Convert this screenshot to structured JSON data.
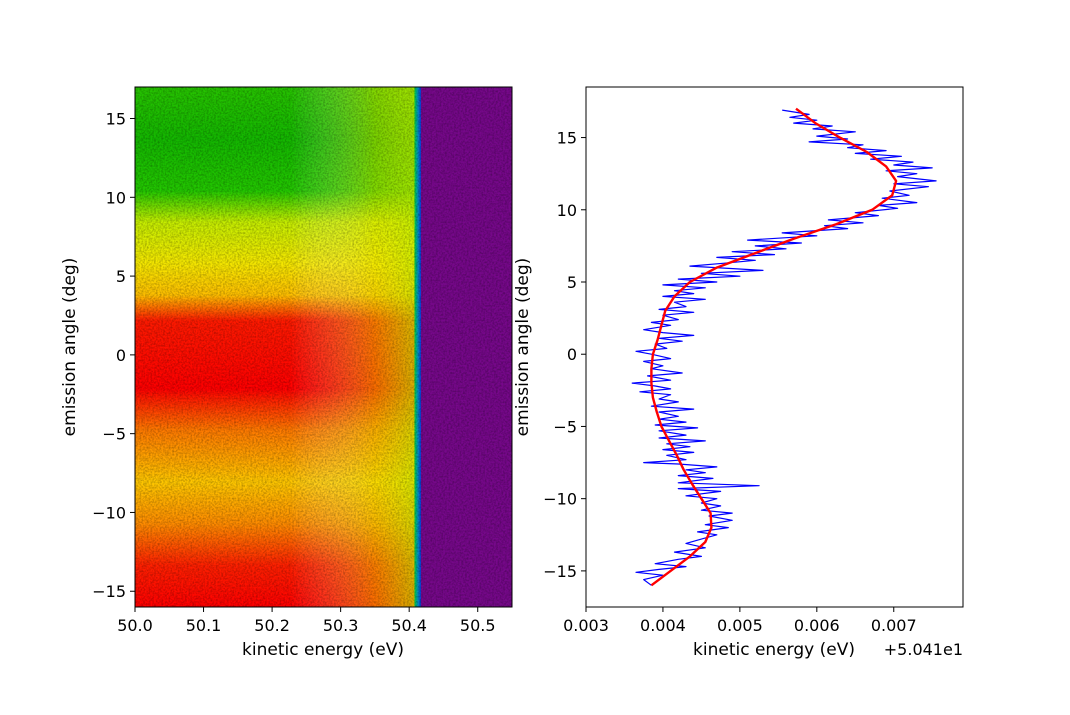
{
  "chart_data": [
    {
      "type": "heatmap",
      "title": "",
      "xlabel": "kinetic energy (eV)",
      "ylabel": "emission angle (deg)",
      "xlim": [
        50.0,
        50.55
      ],
      "ylim": [
        -16,
        17
      ],
      "x_ticks": [
        "50.0",
        "50.1",
        "50.2",
        "50.3",
        "50.4",
        "50.5"
      ],
      "y_ticks": [
        "−15",
        "−10",
        "−5",
        "0",
        "5",
        "10",
        "15"
      ],
      "colormap": "prism-like: red → yellow → green → blue → purple",
      "colors": {
        "high": "#ff0000",
        "mid": "#ffd000",
        "low": "#1bd100",
        "edge": "#1030e0",
        "background": "#7a0a8c"
      },
      "fermi_edge_energy": 50.415,
      "description_values": {
        "angle_bands": [
          {
            "from": 17,
            "to": 10,
            "dominant": "green"
          },
          {
            "from": 10,
            "to": 4,
            "dominant": "yellow"
          },
          {
            "from": 4,
            "to": -5,
            "dominant": "red"
          },
          {
            "from": -5,
            "to": -12,
            "dominant": "yellow-orange"
          },
          {
            "from": -12,
            "to": -16,
            "dominant": "red"
          }
        ]
      }
    },
    {
      "type": "line",
      "title": "",
      "xlabel": "kinetic energy (eV)",
      "x_offset_label": "+5.041e1",
      "ylabel": "emission angle (deg)",
      "xlim": [
        0.003,
        0.0079
      ],
      "ylim": [
        -17.5,
        18.5
      ],
      "x_ticks": [
        "0.003",
        "0.004",
        "0.005",
        "0.006",
        "0.007"
      ],
      "y_ticks": [
        "−15",
        "−10",
        "−5",
        "0",
        "5",
        "10",
        "15"
      ],
      "series": [
        {
          "color": "#0000ff",
          "points": [
            [
              0.00385,
              -16.0
            ],
            [
              0.00375,
              -15.6
            ],
            [
              0.004,
              -15.3
            ],
            [
              0.00365,
              -15.1
            ],
            [
              0.00395,
              -14.9
            ],
            [
              0.0043,
              -14.7
            ],
            [
              0.0039,
              -14.5
            ],
            [
              0.0042,
              -14.2
            ],
            [
              0.0045,
              -14.0
            ],
            [
              0.00415,
              -13.7
            ],
            [
              0.00455,
              -13.4
            ],
            [
              0.0043,
              -13.1
            ],
            [
              0.0045,
              -12.8
            ],
            [
              0.0047,
              -12.5
            ],
            [
              0.00445,
              -12.3
            ],
            [
              0.00485,
              -12.0
            ],
            [
              0.00455,
              -11.8
            ],
            [
              0.0049,
              -11.5
            ],
            [
              0.0046,
              -11.2
            ],
            [
              0.0049,
              -11.0
            ],
            [
              0.0045,
              -10.8
            ],
            [
              0.00475,
              -10.5
            ],
            [
              0.0045,
              -10.3
            ],
            [
              0.0047,
              -10.0
            ],
            [
              0.0043,
              -9.8
            ],
            [
              0.00475,
              -9.5
            ],
            [
              0.0042,
              -9.3
            ],
            [
              0.00525,
              -9.1
            ],
            [
              0.0042,
              -8.9
            ],
            [
              0.00465,
              -8.6
            ],
            [
              0.0042,
              -8.4
            ],
            [
              0.00455,
              -8.2
            ],
            [
              0.0043,
              -8.0
            ],
            [
              0.0047,
              -7.8
            ],
            [
              0.0042,
              -7.6
            ],
            [
              0.00375,
              -7.5
            ],
            [
              0.0043,
              -7.3
            ],
            [
              0.00405,
              -7.0
            ],
            [
              0.0044,
              -6.8
            ],
            [
              0.004,
              -6.6
            ],
            [
              0.00435,
              -6.4
            ],
            [
              0.00405,
              -6.2
            ],
            [
              0.00455,
              -6.0
            ],
            [
              0.00395,
              -5.8
            ],
            [
              0.0043,
              -5.6
            ],
            [
              0.00395,
              -5.3
            ],
            [
              0.00445,
              -5.1
            ],
            [
              0.0039,
              -4.9
            ],
            [
              0.0043,
              -4.7
            ],
            [
              0.00395,
              -4.5
            ],
            [
              0.0042,
              -4.3
            ],
            [
              0.00395,
              -4.0
            ],
            [
              0.0044,
              -3.8
            ],
            [
              0.00385,
              -3.6
            ],
            [
              0.0042,
              -3.3
            ],
            [
              0.00395,
              -3.1
            ],
            [
              0.0041,
              -2.8
            ],
            [
              0.0037,
              -2.6
            ],
            [
              0.0041,
              -2.4
            ],
            [
              0.0039,
              -2.2
            ],
            [
              0.0036,
              -2.0
            ],
            [
              0.0041,
              -1.8
            ],
            [
              0.0038,
              -1.5
            ],
            [
              0.00425,
              -1.3
            ],
            [
              0.00385,
              -1.0
            ],
            [
              0.004,
              -0.8
            ],
            [
              0.00375,
              -0.5
            ],
            [
              0.0041,
              -0.3
            ],
            [
              0.00385,
              0.0
            ],
            [
              0.00365,
              0.2
            ],
            [
              0.00405,
              0.4
            ],
            [
              0.0039,
              0.7
            ],
            [
              0.00425,
              0.9
            ],
            [
              0.00395,
              1.1
            ],
            [
              0.0044,
              1.3
            ],
            [
              0.004,
              1.5
            ],
            [
              0.00375,
              1.7
            ],
            [
              0.0041,
              2.0
            ],
            [
              0.00385,
              2.2
            ],
            [
              0.0042,
              2.4
            ],
            [
              0.004,
              2.7
            ],
            [
              0.0044,
              2.9
            ],
            [
              0.00395,
              3.1
            ],
            [
              0.0043,
              3.3
            ],
            [
              0.00415,
              3.6
            ],
            [
              0.00455,
              3.8
            ],
            [
              0.004,
              4.0
            ],
            [
              0.0044,
              4.2
            ],
            [
              0.00415,
              4.4
            ],
            [
              0.00455,
              4.6
            ],
            [
              0.004,
              4.8
            ],
            [
              0.0047,
              5.0
            ],
            [
              0.0042,
              5.2
            ],
            [
              0.005,
              5.4
            ],
            [
              0.0045,
              5.6
            ],
            [
              0.0053,
              5.8
            ],
            [
              0.00435,
              6.1
            ],
            [
              0.0048,
              6.3
            ],
            [
              0.0052,
              6.5
            ],
            [
              0.0047,
              6.7
            ],
            [
              0.00545,
              6.9
            ],
            [
              0.0049,
              7.1
            ],
            [
              0.0056,
              7.3
            ],
            [
              0.0052,
              7.5
            ],
            [
              0.0058,
              7.7
            ],
            [
              0.0051,
              7.9
            ],
            [
              0.006,
              8.2
            ],
            [
              0.00555,
              8.4
            ],
            [
              0.0064,
              8.7
            ],
            [
              0.0061,
              8.9
            ],
            [
              0.0066,
              9.1
            ],
            [
              0.00615,
              9.3
            ],
            [
              0.0068,
              9.6
            ],
            [
              0.0065,
              9.8
            ],
            [
              0.00705,
              10.1
            ],
            [
              0.0068,
              10.3
            ],
            [
              0.0073,
              10.5
            ],
            [
              0.00685,
              10.8
            ],
            [
              0.0072,
              11.0
            ],
            [
              0.00695,
              11.3
            ],
            [
              0.00745,
              11.6
            ],
            [
              0.007,
              11.8
            ],
            [
              0.00755,
              12.0
            ],
            [
              0.00705,
              12.3
            ],
            [
              0.0073,
              12.5
            ],
            [
              0.0069,
              12.7
            ],
            [
              0.0075,
              12.9
            ],
            [
              0.007,
              13.1
            ],
            [
              0.00725,
              13.3
            ],
            [
              0.0067,
              13.5
            ],
            [
              0.0071,
              13.7
            ],
            [
              0.0065,
              13.9
            ],
            [
              0.0069,
              14.1
            ],
            [
              0.0064,
              14.3
            ],
            [
              0.0066,
              14.5
            ],
            [
              0.0059,
              14.7
            ],
            [
              0.0064,
              14.9
            ],
            [
              0.006,
              15.1
            ],
            [
              0.0065,
              15.4
            ],
            [
              0.00595,
              15.6
            ],
            [
              0.0062,
              15.8
            ],
            [
              0.0057,
              16.0
            ],
            [
              0.006,
              16.2
            ],
            [
              0.00565,
              16.4
            ],
            [
              0.0059,
              16.6
            ],
            [
              0.00555,
              16.9
            ]
          ]
        },
        {
          "color": "#ff0000",
          "points": [
            [
              0.00385,
              -16.0
            ],
            [
              0.0041,
              -15.0
            ],
            [
              0.00435,
              -14.0
            ],
            [
              0.00455,
              -13.0
            ],
            [
              0.00463,
              -12.0
            ],
            [
              0.00462,
              -11.0
            ],
            [
              0.0045,
              -10.0
            ],
            [
              0.00438,
              -9.0
            ],
            [
              0.00427,
              -8.0
            ],
            [
              0.00418,
              -7.0
            ],
            [
              0.00408,
              -6.0
            ],
            [
              0.00398,
              -5.0
            ],
            [
              0.00392,
              -4.0
            ],
            [
              0.00387,
              -3.0
            ],
            [
              0.00385,
              -2.0
            ],
            [
              0.00385,
              -1.0
            ],
            [
              0.00387,
              0.0
            ],
            [
              0.00393,
              1.0
            ],
            [
              0.00398,
              2.0
            ],
            [
              0.00403,
              3.0
            ],
            [
              0.00415,
              4.0
            ],
            [
              0.00435,
              5.0
            ],
            [
              0.0047,
              6.0
            ],
            [
              0.0052,
              7.0
            ],
            [
              0.0057,
              8.0
            ],
            [
              0.00625,
              9.0
            ],
            [
              0.00672,
              10.0
            ],
            [
              0.00698,
              11.0
            ],
            [
              0.00703,
              12.0
            ],
            [
              0.0069,
              13.0
            ],
            [
              0.00665,
              14.0
            ],
            [
              0.0063,
              15.0
            ],
            [
              0.00598,
              16.0
            ],
            [
              0.00573,
              17.0
            ]
          ]
        }
      ]
    }
  ]
}
